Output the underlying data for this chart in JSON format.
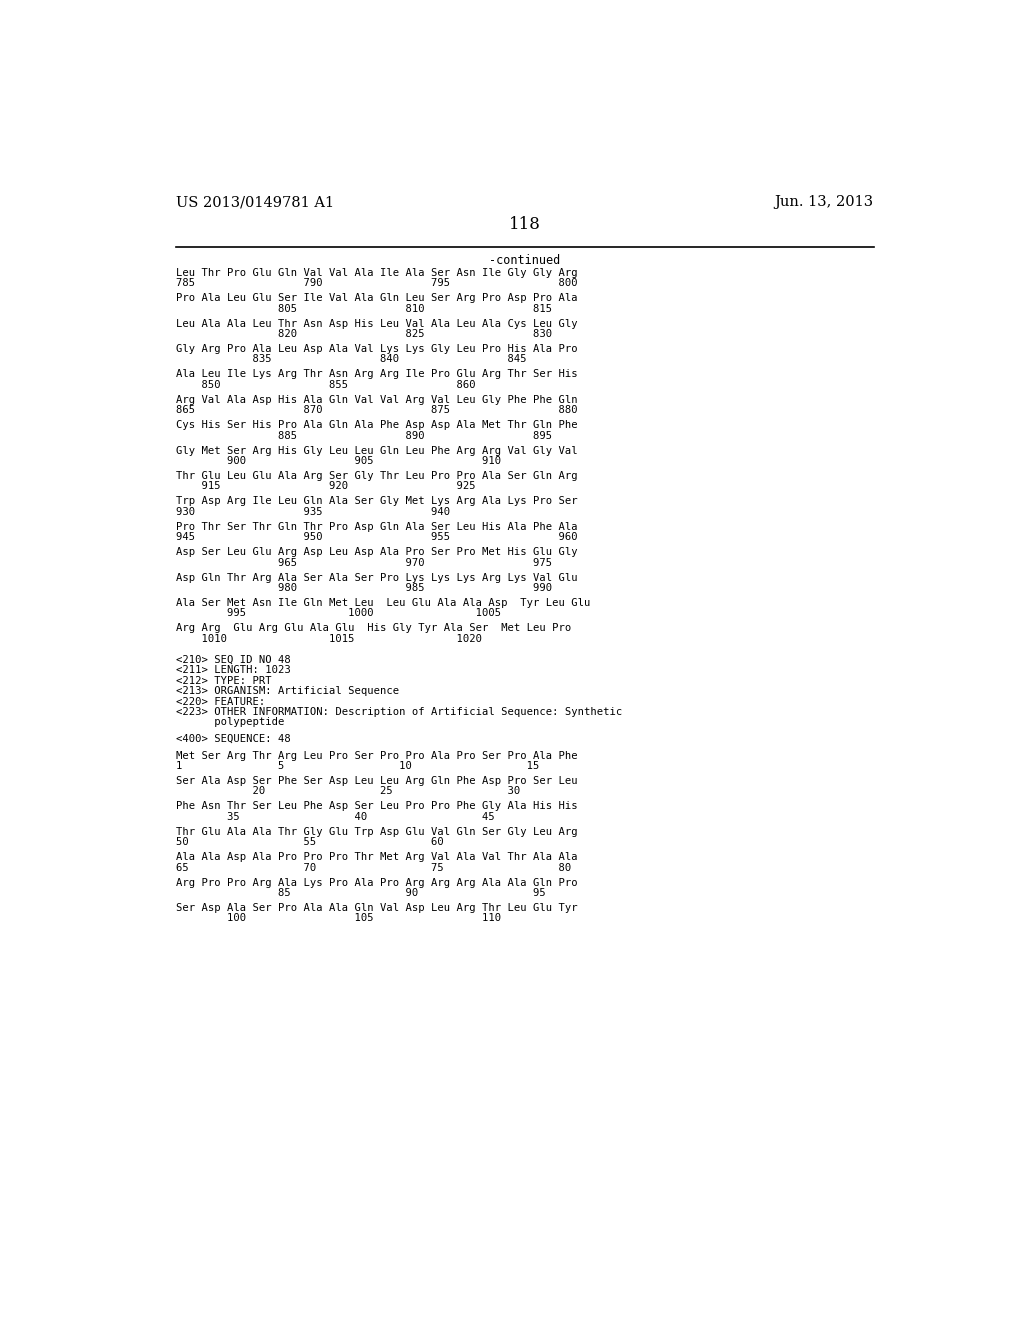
{
  "header_left": "US 2013/0149781 A1",
  "header_right": "Jun. 13, 2013",
  "page_number": "118",
  "continued_label": "-continued",
  "background_color": "#ffffff",
  "text_color": "#000000",
  "font_size_header": 10.5,
  "font_size_page": 12,
  "font_size_continued": 8.5,
  "seq_font_size": 7.6,
  "sequence_lines": [
    [
      "Leu Thr Pro Glu Gln Val Val Ala Ile Ala Ser Asn Ile Gly Gly Arg",
      "785                 790                 795                 800"
    ],
    [
      "Pro Ala Leu Glu Ser Ile Val Ala Gln Leu Ser Arg Pro Asp Pro Ala",
      "                805                 810                 815"
    ],
    [
      "Leu Ala Ala Leu Thr Asn Asp His Leu Val Ala Leu Ala Cys Leu Gly",
      "                820                 825                 830"
    ],
    [
      "Gly Arg Pro Ala Leu Asp Ala Val Lys Lys Gly Leu Pro His Ala Pro",
      "            835                 840                 845"
    ],
    [
      "Ala Leu Ile Lys Arg Thr Asn Arg Arg Ile Pro Glu Arg Thr Ser His",
      "    850                 855                 860"
    ],
    [
      "Arg Val Ala Asp His Ala Gln Val Val Arg Val Leu Gly Phe Phe Gln",
      "865                 870                 875                 880"
    ],
    [
      "Cys His Ser His Pro Ala Gln Ala Phe Asp Asp Ala Met Thr Gln Phe",
      "                885                 890                 895"
    ],
    [
      "Gly Met Ser Arg His Gly Leu Leu Gln Leu Phe Arg Arg Val Gly Val",
      "        900                 905                 910"
    ],
    [
      "Thr Glu Leu Glu Ala Arg Ser Gly Thr Leu Pro Pro Ala Ser Gln Arg",
      "    915                 920                 925"
    ],
    [
      "Trp Asp Arg Ile Leu Gln Ala Ser Gly Met Lys Arg Ala Lys Pro Ser",
      "930                 935                 940"
    ],
    [
      "Pro Thr Ser Thr Gln Thr Pro Asp Gln Ala Ser Leu His Ala Phe Ala",
      "945                 950                 955                 960"
    ],
    [
      "Asp Ser Leu Glu Arg Asp Leu Asp Ala Pro Ser Pro Met His Glu Gly",
      "                965                 970                 975"
    ],
    [
      "Asp Gln Thr Arg Ala Ser Ala Ser Pro Lys Lys Lys Arg Lys Val Glu",
      "                980                 985                 990"
    ],
    [
      "Ala Ser Met Asn Ile Gln Met Leu  Leu Glu Ala Ala Asp  Tyr Leu Glu",
      "        995                1000                1005"
    ],
    [
      "Arg Arg  Glu Arg Glu Ala Glu  His Gly Tyr Ala Ser  Met Leu Pro",
      "    1010                1015                1020"
    ]
  ],
  "metadata_lines": [
    "<210> SEQ ID NO 48",
    "<211> LENGTH: 1023",
    "<212> TYPE: PRT",
    "<213> ORGANISM: Artificial Sequence",
    "<220> FEATURE:",
    "<223> OTHER INFORMATION: Description of Artificial Sequence: Synthetic",
    "      polypeptide",
    "",
    "<400> SEQUENCE: 48"
  ],
  "new_sequence_lines": [
    [
      "Met Ser Arg Thr Arg Leu Pro Ser Pro Pro Ala Pro Ser Pro Ala Phe",
      "1               5                  10                  15"
    ],
    [
      "Ser Ala Asp Ser Phe Ser Asp Leu Leu Arg Gln Phe Asp Pro Ser Leu",
      "            20                  25                  30"
    ],
    [
      "Phe Asn Thr Ser Leu Phe Asp Ser Leu Pro Pro Phe Gly Ala His His",
      "        35                  40                  45"
    ],
    [
      "Thr Glu Ala Ala Thr Gly Glu Trp Asp Glu Val Gln Ser Gly Leu Arg",
      "50                  55                  60"
    ],
    [
      "Ala Ala Asp Ala Pro Pro Pro Thr Met Arg Val Ala Val Thr Ala Ala",
      "65                  70                  75                  80"
    ],
    [
      "Arg Pro Pro Arg Ala Lys Pro Ala Pro Arg Arg Arg Ala Ala Gln Pro",
      "                85                  90                  95"
    ],
    [
      "Ser Asp Ala Ser Pro Ala Ala Gln Val Asp Leu Arg Thr Leu Glu Tyr",
      "        100                 105                 110"
    ]
  ]
}
